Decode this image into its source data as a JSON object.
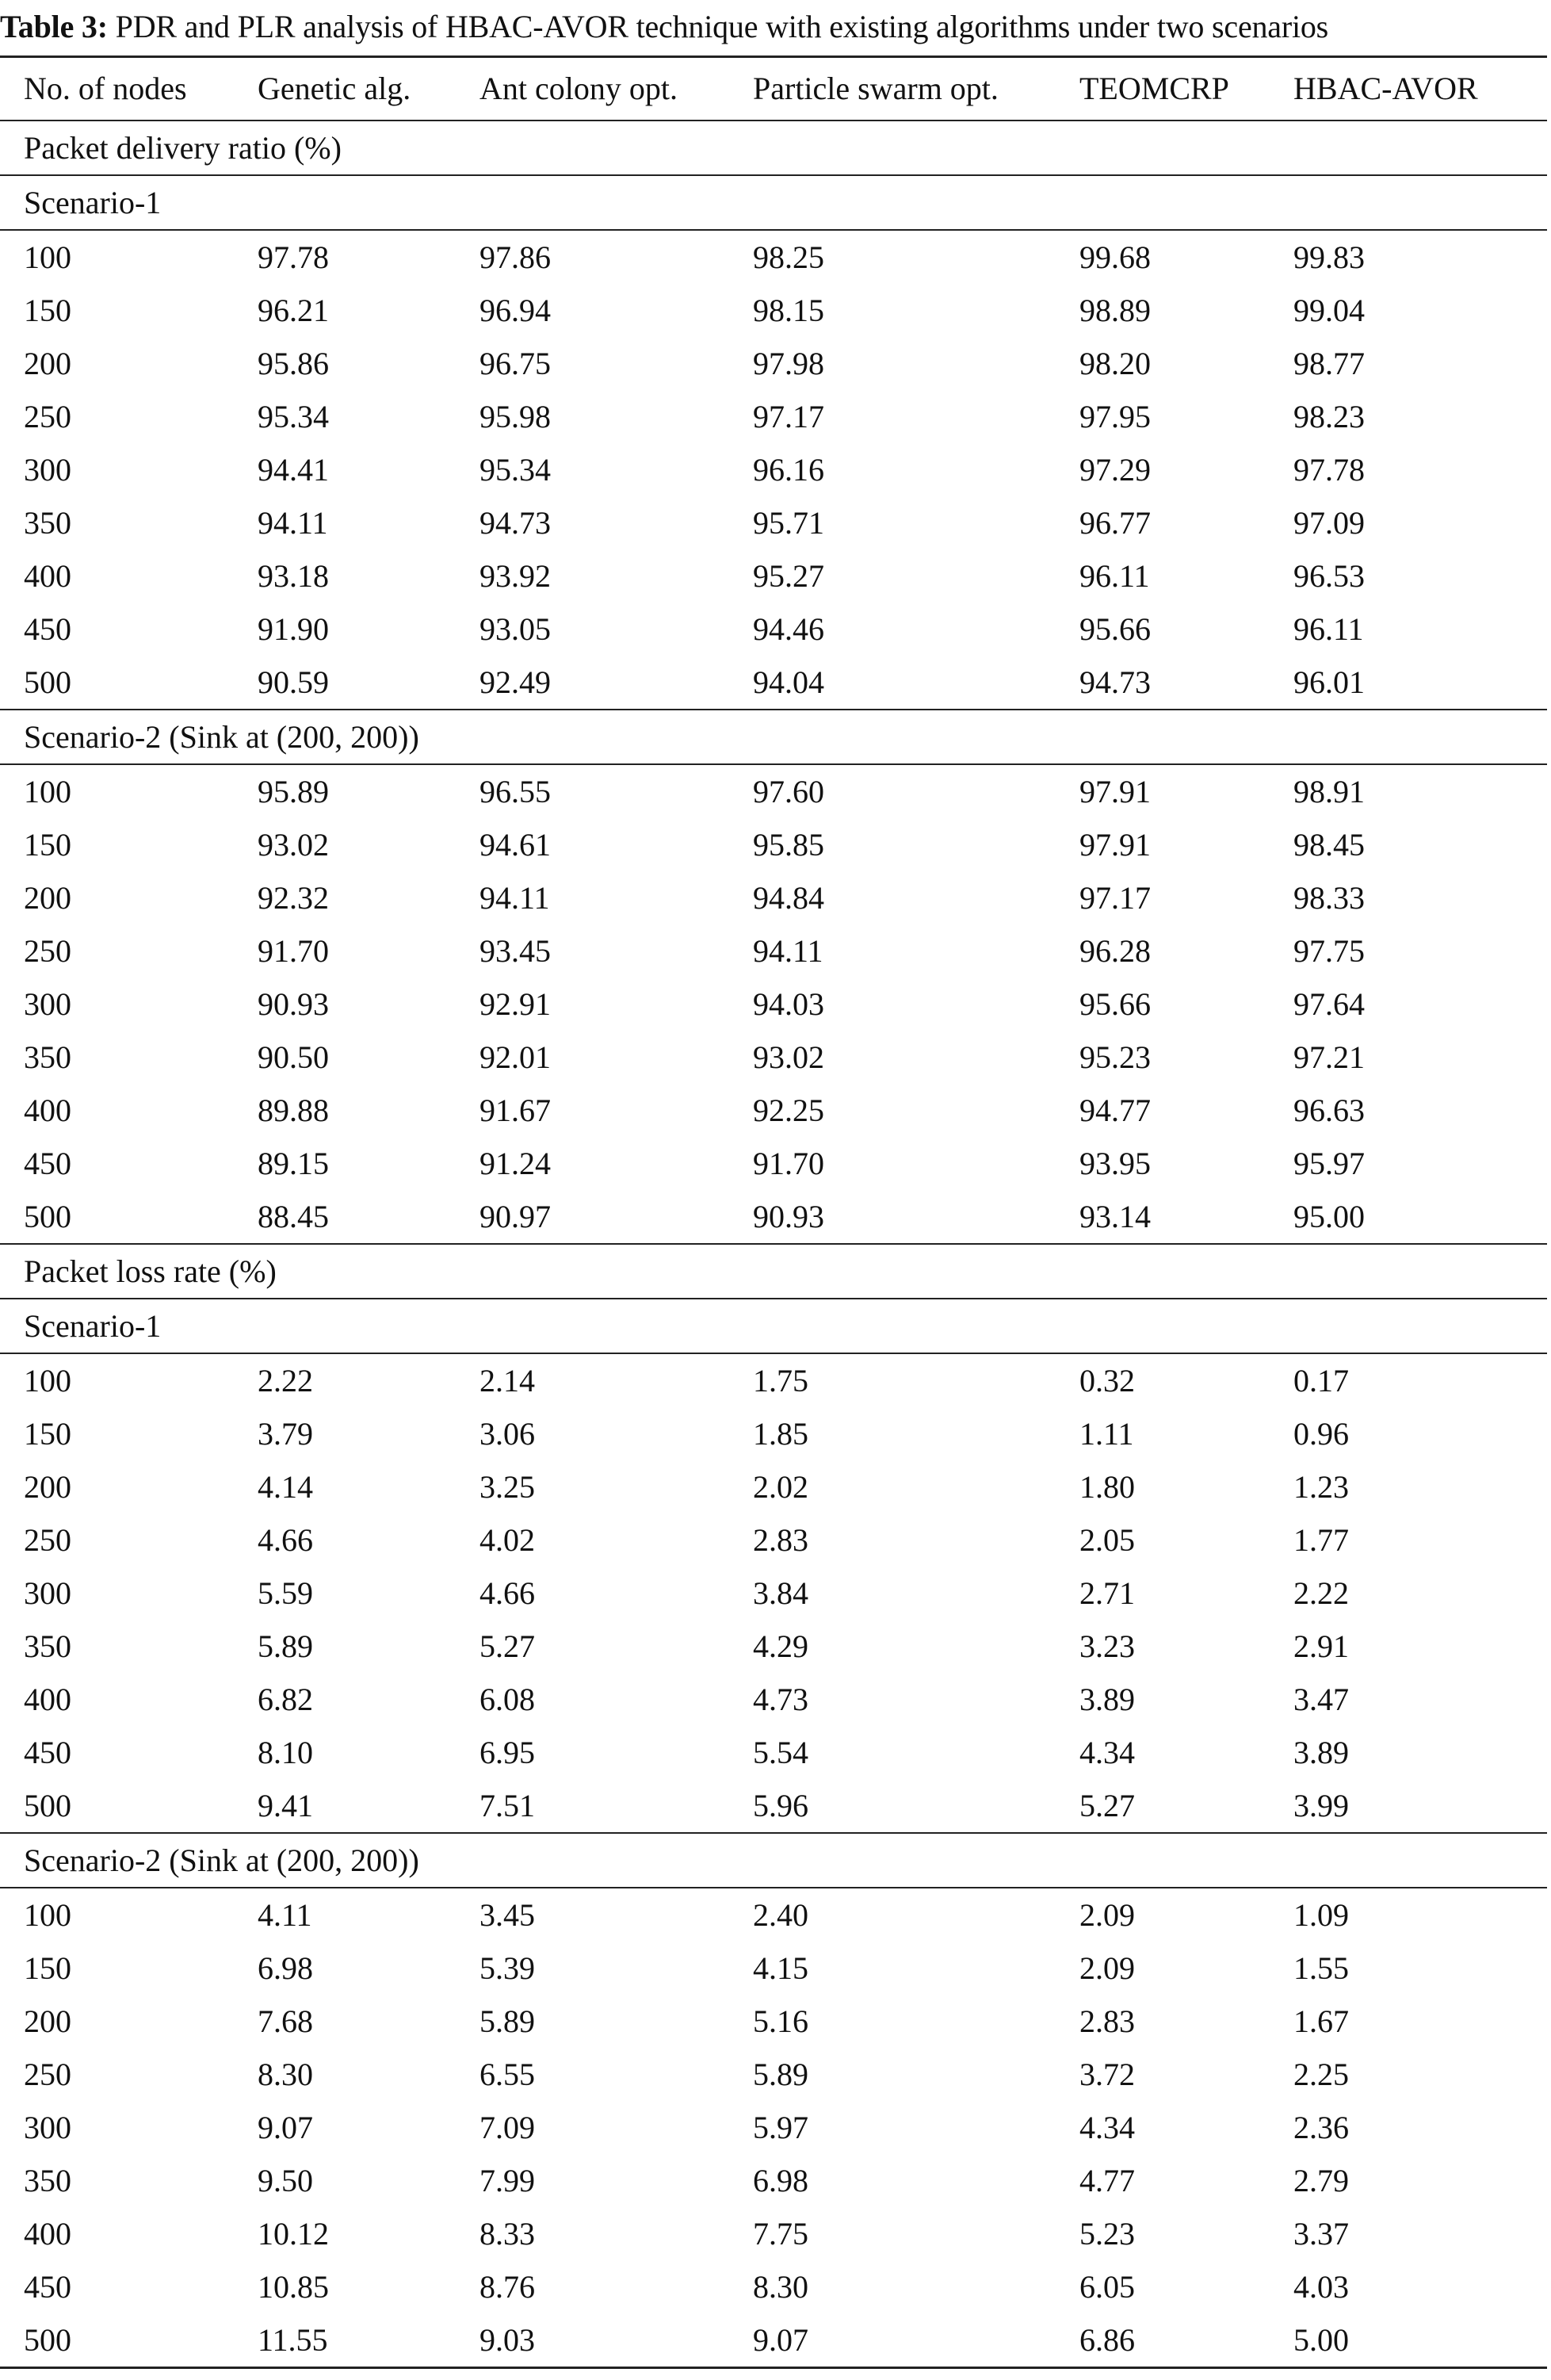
{
  "caption": {
    "label": "Table 3:",
    "text": " PDR and PLR analysis of HBAC-AVOR technique with existing algorithms under two scenarios"
  },
  "table": {
    "headers": [
      "No. of nodes",
      "Genetic alg.",
      "Ant colony opt.",
      "Particle swarm opt.",
      "TEOMCRP",
      "HBAC-AVOR"
    ],
    "sections": [
      {
        "title": "Packet delivery ratio (%)",
        "groups": [
          {
            "title": "Scenario-1",
            "rows": [
              [
                "100",
                "97.78",
                "97.86",
                "98.25",
                "99.68",
                "99.83"
              ],
              [
                "150",
                "96.21",
                "96.94",
                "98.15",
                "98.89",
                "99.04"
              ],
              [
                "200",
                "95.86",
                "96.75",
                "97.98",
                "98.20",
                "98.77"
              ],
              [
                "250",
                "95.34",
                "95.98",
                "97.17",
                "97.95",
                "98.23"
              ],
              [
                "300",
                "94.41",
                "95.34",
                "96.16",
                "97.29",
                "97.78"
              ],
              [
                "350",
                "94.11",
                "94.73",
                "95.71",
                "96.77",
                "97.09"
              ],
              [
                "400",
                "93.18",
                "93.92",
                "95.27",
                "96.11",
                "96.53"
              ],
              [
                "450",
                "91.90",
                "93.05",
                "94.46",
                "95.66",
                "96.11"
              ],
              [
                "500",
                "90.59",
                "92.49",
                "94.04",
                "94.73",
                "96.01"
              ]
            ]
          },
          {
            "title": "Scenario-2 (Sink at (200, 200))",
            "rows": [
              [
                "100",
                "95.89",
                "96.55",
                "97.60",
                "97.91",
                "98.91"
              ],
              [
                "150",
                "93.02",
                "94.61",
                "95.85",
                "97.91",
                "98.45"
              ],
              [
                "200",
                "92.32",
                "94.11",
                "94.84",
                "97.17",
                "98.33"
              ],
              [
                "250",
                "91.70",
                "93.45",
                "94.11",
                "96.28",
                "97.75"
              ],
              [
                "300",
                "90.93",
                "92.91",
                "94.03",
                "95.66",
                "97.64"
              ],
              [
                "350",
                "90.50",
                "92.01",
                "93.02",
                "95.23",
                "97.21"
              ],
              [
                "400",
                "89.88",
                "91.67",
                "92.25",
                "94.77",
                "96.63"
              ],
              [
                "450",
                "89.15",
                "91.24",
                "91.70",
                "93.95",
                "95.97"
              ],
              [
                "500",
                "88.45",
                "90.97",
                "90.93",
                "93.14",
                "95.00"
              ]
            ]
          }
        ]
      },
      {
        "title": "Packet loss rate (%)",
        "groups": [
          {
            "title": "Scenario-1",
            "rows": [
              [
                "100",
                "2.22",
                "2.14",
                "1.75",
                "0.32",
                "0.17"
              ],
              [
                "150",
                "3.79",
                "3.06",
                "1.85",
                "1.11",
                "0.96"
              ],
              [
                "200",
                "4.14",
                "3.25",
                "2.02",
                "1.80",
                "1.23"
              ],
              [
                "250",
                "4.66",
                "4.02",
                "2.83",
                "2.05",
                "1.77"
              ],
              [
                "300",
                "5.59",
                "4.66",
                "3.84",
                "2.71",
                "2.22"
              ],
              [
                "350",
                "5.89",
                "5.27",
                "4.29",
                "3.23",
                "2.91"
              ],
              [
                "400",
                "6.82",
                "6.08",
                "4.73",
                "3.89",
                "3.47"
              ],
              [
                "450",
                "8.10",
                "6.95",
                "5.54",
                "4.34",
                "3.89"
              ],
              [
                "500",
                "9.41",
                "7.51",
                "5.96",
                "5.27",
                "3.99"
              ]
            ]
          },
          {
            "title": "Scenario-2 (Sink at (200, 200))",
            "rows": [
              [
                "100",
                "4.11",
                "3.45",
                "2.40",
                "2.09",
                "1.09"
              ],
              [
                "150",
                "6.98",
                "5.39",
                "4.15",
                "2.09",
                "1.55"
              ],
              [
                "200",
                "7.68",
                "5.89",
                "5.16",
                "2.83",
                "1.67"
              ],
              [
                "250",
                "8.30",
                "6.55",
                "5.89",
                "3.72",
                "2.25"
              ],
              [
                "300",
                "9.07",
                "7.09",
                "5.97",
                "4.34",
                "2.36"
              ],
              [
                "350",
                "9.50",
                "7.99",
                "6.98",
                "4.77",
                "2.79"
              ],
              [
                "400",
                "10.12",
                "8.33",
                "7.75",
                "5.23",
                "3.37"
              ],
              [
                "450",
                "10.85",
                "8.76",
                "8.30",
                "6.05",
                "4.03"
              ],
              [
                "500",
                "11.55",
                "9.03",
                "9.07",
                "6.86",
                "5.00"
              ]
            ]
          }
        ]
      }
    ]
  }
}
